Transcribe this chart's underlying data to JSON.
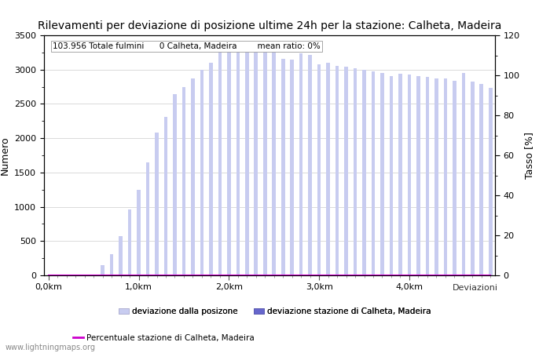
{
  "title": "Rilevamenti per deviazione di posizione ultime 24h per la stazione: Calheta, Madeira",
  "ylabel_left": "Numero",
  "ylabel_right": "Tasso [%]",
  "annotation": "103.956 Totale fulmini      0 Calheta, Madeira        mean ratio: 0%",
  "watermark": "www.lightningmaps.org",
  "ylim_left": [
    0,
    3500
  ],
  "ylim_right": [
    0,
    120
  ],
  "bar_color_light": "#c8ccf0",
  "bar_color_dark": "#6666cc",
  "line_color": "#cc00cc",
  "xtick_labels": [
    "0,0km",
    "1,0km",
    "2,0km",
    "3,0km",
    "4,0km"
  ],
  "xtick_positions": [
    0,
    10,
    20,
    30,
    40
  ],
  "bar_values": [
    0,
    0,
    0,
    0,
    0,
    0,
    150,
    310,
    570,
    960,
    1250,
    1650,
    2080,
    2310,
    2640,
    2750,
    2870,
    3000,
    3100,
    3300,
    3320,
    3330,
    3390,
    3320,
    3310,
    3320,
    3160,
    3150,
    3240,
    3210,
    3080,
    3100,
    3050,
    3040,
    3020,
    3000,
    2970,
    2950,
    2900,
    2940,
    2930,
    2910,
    2890,
    2870,
    2870,
    2840,
    2950,
    2830,
    2790,
    2730
  ],
  "station_values": [
    0,
    0,
    0,
    0,
    0,
    0,
    0,
    0,
    0,
    0,
    0,
    0,
    0,
    0,
    0,
    0,
    0,
    0,
    0,
    0,
    0,
    0,
    0,
    0,
    0,
    0,
    0,
    0,
    0,
    0,
    0,
    0,
    0,
    0,
    0,
    0,
    0,
    0,
    0,
    0,
    0,
    0,
    0,
    0,
    0,
    0,
    0,
    0,
    0,
    0
  ],
  "ratio_values": [
    0,
    0,
    0,
    0,
    0,
    0,
    0,
    0,
    0,
    0,
    0,
    0,
    0,
    0,
    0,
    0,
    0,
    0,
    0,
    0,
    0,
    0,
    0,
    0,
    0,
    0,
    0,
    0,
    0,
    0,
    0,
    0,
    0,
    0,
    0,
    0,
    0,
    0,
    0,
    0,
    0,
    0,
    0,
    0,
    0,
    0,
    0,
    0,
    0,
    0
  ],
  "legend_light_label": "deviazione dalla posizone",
  "legend_dark_label": "deviazione stazione di Calheta, Madeira",
  "legend_line_label": "Percentuale stazione di Calheta, Madeira",
  "n_bars": 50,
  "bar_width": 0.4,
  "background_color": "#ffffff",
  "grid_color": "#cccccc",
  "title_fontsize": 10,
  "label_fontsize": 9,
  "tick_fontsize": 8
}
